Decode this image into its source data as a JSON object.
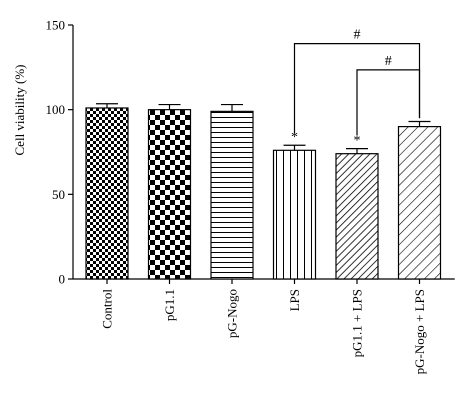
{
  "chart_data": {
    "type": "bar",
    "title": "",
    "xlabel": "",
    "ylabel": "Cell viability (%)",
    "ylim": [
      0,
      150
    ],
    "yticks": [
      "0",
      "50",
      "100",
      "150"
    ],
    "categories": [
      "Control",
      "pG1.1",
      "pG-Nogo",
      "LPS",
      "pG1.1 + LPS",
      "pG-Nogo + LPS"
    ],
    "values": [
      101,
      100,
      99,
      76,
      74,
      90
    ],
    "errors": [
      2.5,
      3,
      4,
      3,
      3,
      3
    ],
    "patterns": [
      "fine-checker",
      "coarse-checker",
      "horizontal-lines",
      "vertical-lines",
      "diagonal-dense",
      "diagonal-sparse"
    ],
    "significance": [
      "",
      "",
      "",
      "*",
      "*",
      ""
    ],
    "brackets": [
      {
        "from": 3,
        "to": 5,
        "label": "#"
      },
      {
        "from": 4,
        "to": 5,
        "label": "#"
      }
    ],
    "grid": false,
    "legend": "none"
  },
  "colors": {
    "ink": "#000000",
    "fill": "#ffffff"
  }
}
